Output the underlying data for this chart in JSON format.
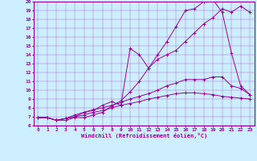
{
  "xlabel": "Windchill (Refroidissement éolien,°C)",
  "bg_color": "#cceeff",
  "line_color": "#990099",
  "xlim": [
    -0.5,
    23.5
  ],
  "ylim": [
    6,
    20
  ],
  "xticks": [
    0,
    1,
    2,
    3,
    4,
    5,
    6,
    7,
    8,
    9,
    10,
    11,
    12,
    13,
    14,
    15,
    16,
    17,
    18,
    19,
    20,
    21,
    22,
    23
  ],
  "yticks": [
    6,
    7,
    8,
    9,
    10,
    11,
    12,
    13,
    14,
    15,
    16,
    17,
    18,
    19,
    20
  ],
  "curve1_x": [
    0,
    1,
    2,
    3,
    4,
    5,
    6,
    7,
    8,
    9,
    10,
    11,
    12,
    13,
    14,
    15,
    16,
    17,
    18,
    19,
    20,
    21,
    22,
    23
  ],
  "curve1_y": [
    6.9,
    6.9,
    6.6,
    6.6,
    6.9,
    6.9,
    7.2,
    7.5,
    8.2,
    8.8,
    9.8,
    11.0,
    12.5,
    14.0,
    15.5,
    17.2,
    19.0,
    19.2,
    20.0,
    20.2,
    18.8,
    14.2,
    10.5,
    9.5
  ],
  "curve2_x": [
    0,
    1,
    2,
    3,
    4,
    5,
    6,
    7,
    8,
    9,
    10,
    11,
    12,
    13,
    14,
    15,
    16,
    17,
    18,
    19,
    20,
    21,
    22,
    23
  ],
  "curve2_y": [
    6.9,
    6.9,
    6.6,
    6.8,
    7.2,
    7.5,
    7.7,
    8.3,
    8.7,
    8.3,
    14.7,
    14.0,
    12.5,
    13.5,
    14.0,
    14.5,
    15.5,
    16.5,
    17.5,
    18.2,
    19.2,
    18.8,
    19.5,
    18.8
  ],
  "curve3_x": [
    0,
    1,
    2,
    3,
    4,
    5,
    6,
    7,
    8,
    9,
    10,
    11,
    12,
    13,
    14,
    15,
    16,
    17,
    18,
    19,
    20,
    21,
    22,
    23
  ],
  "curve3_y": [
    6.9,
    6.9,
    6.6,
    6.8,
    7.0,
    7.5,
    7.8,
    8.0,
    8.3,
    8.6,
    9.0,
    9.3,
    9.6,
    10.0,
    10.5,
    10.8,
    11.2,
    11.2,
    11.2,
    11.5,
    11.5,
    10.5,
    10.2,
    9.5
  ],
  "curve4_x": [
    0,
    1,
    2,
    3,
    4,
    5,
    6,
    7,
    8,
    9,
    10,
    11,
    12,
    13,
    14,
    15,
    16,
    17,
    18,
    19,
    20,
    21,
    22,
    23
  ],
  "curve4_y": [
    6.9,
    6.9,
    6.6,
    6.8,
    7.0,
    7.2,
    7.5,
    7.7,
    8.0,
    8.3,
    8.5,
    8.7,
    9.0,
    9.2,
    9.4,
    9.6,
    9.7,
    9.7,
    9.6,
    9.5,
    9.3,
    9.2,
    9.1,
    9.0
  ]
}
